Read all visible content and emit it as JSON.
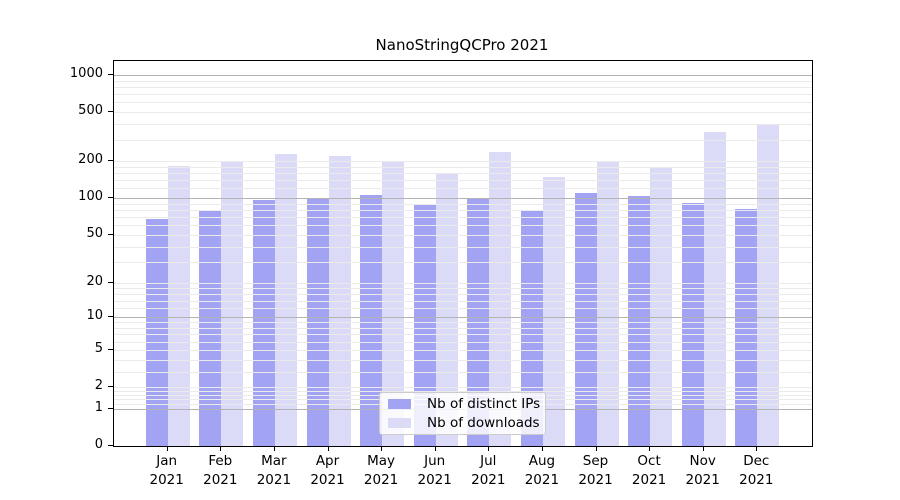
{
  "title": "NanoStringQCPro 2021",
  "chart_data": {
    "type": "bar",
    "title": "NanoStringQCPro 2021",
    "categories": [
      "Jan",
      "Feb",
      "Mar",
      "Apr",
      "May",
      "Jun",
      "Jul",
      "Aug",
      "Sep",
      "Oct",
      "Nov",
      "Dec"
    ],
    "year": "2021",
    "series": [
      {
        "name": "Nb of distinct IPs",
        "color": "#a3a3f3",
        "values": [
          68,
          78,
          96,
          98,
          107,
          89,
          99,
          80,
          111,
          105,
          91,
          82
        ]
      },
      {
        "name": "Nb of downloads",
        "color": "#dbdbf8",
        "values": [
          183,
          200,
          228,
          222,
          196,
          160,
          237,
          150,
          196,
          179,
          347,
          394
        ]
      }
    ],
    "xlabel": "",
    "ylabel": "",
    "y_scale": "log1p",
    "y_ticks": [
      0,
      1,
      2,
      5,
      10,
      20,
      50,
      100,
      200,
      500,
      1000
    ],
    "ylim": [
      0,
      1300
    ],
    "grid": "horizontal major+minor",
    "legend_position": "inside bottom-center"
  },
  "colors": {
    "background": "#ffffff",
    "frame": "#000000",
    "grid_major": "#b3b3b3",
    "grid_minor": "#ebebeb",
    "legend_border": "#cccccc"
  }
}
